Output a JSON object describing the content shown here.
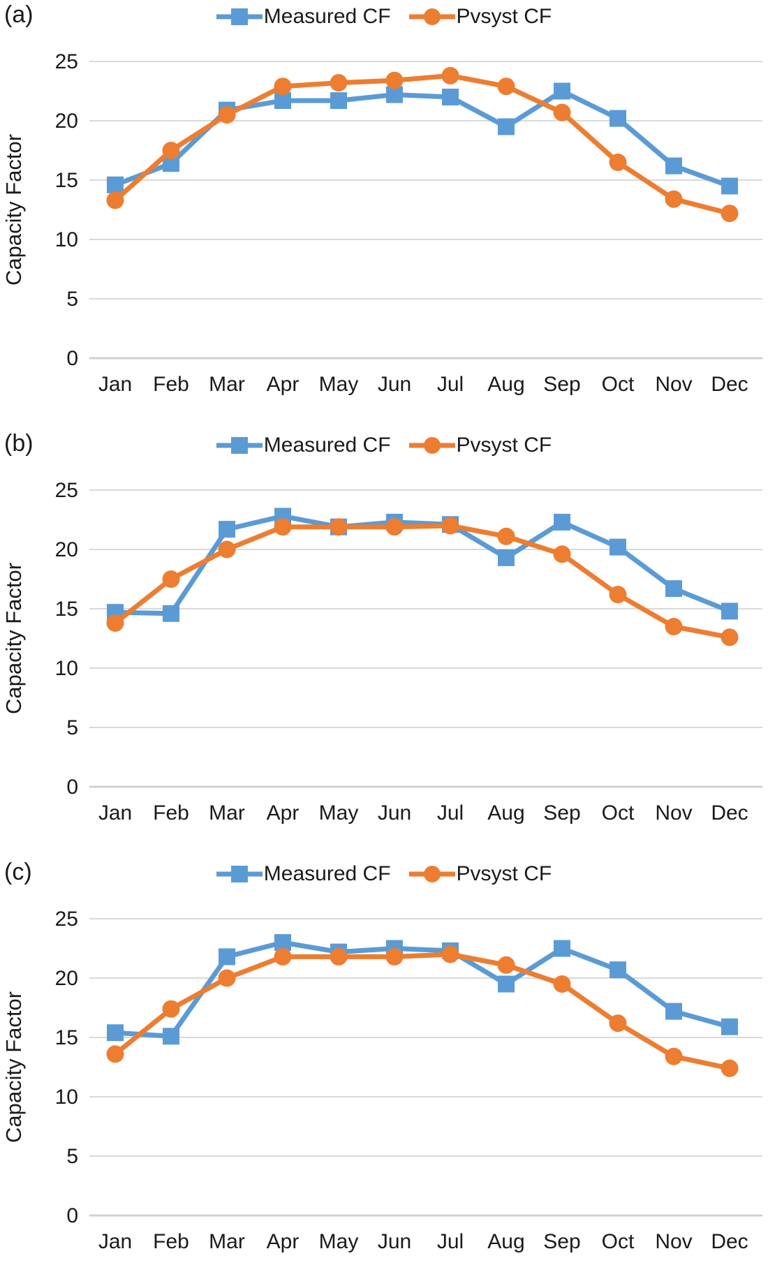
{
  "figure": {
    "accent_blue": "#5B9BD5",
    "accent_orange": "#ED7D31",
    "gridline_color": "#d9d9d9",
    "zero_line_color": "#d0d0d0"
  },
  "chart_data": [
    {
      "type": "line",
      "panel": "(a)",
      "ylabel": "Capacity Factor",
      "ylim": [
        0,
        25
      ],
      "yticks": [
        0,
        5,
        10,
        15,
        20,
        25
      ],
      "grid": "horizontal",
      "legend_position": "top-center",
      "categories": [
        "Jan",
        "Feb",
        "Mar",
        "Apr",
        "May",
        "Jun",
        "Jul",
        "Aug",
        "Sep",
        "Oct",
        "Nov",
        "Dec"
      ],
      "series": [
        {
          "name": "Measured CF",
          "marker": "square",
          "color": "#5B9BD5",
          "values": [
            14.6,
            16.4,
            20.9,
            21.7,
            21.7,
            22.2,
            22.0,
            19.5,
            22.5,
            20.2,
            16.2,
            14.5
          ]
        },
        {
          "name": "Pvsyst CF",
          "marker": "circle",
          "color": "#ED7D31",
          "values": [
            13.3,
            17.5,
            20.5,
            22.9,
            23.2,
            23.4,
            23.8,
            22.9,
            20.7,
            16.5,
            13.4,
            12.2
          ]
        }
      ]
    },
    {
      "type": "line",
      "panel": "(b)",
      "ylabel": "Capacity Factor",
      "ylim": [
        0,
        25
      ],
      "yticks": [
        0,
        5,
        10,
        15,
        20,
        25
      ],
      "grid": "horizontal",
      "legend_position": "top-center",
      "categories": [
        "Jan",
        "Feb",
        "Mar",
        "Apr",
        "May",
        "Jun",
        "Jul",
        "Aug",
        "Sep",
        "Oct",
        "Nov",
        "Dec"
      ],
      "series": [
        {
          "name": "Measured CF",
          "marker": "square",
          "color": "#5B9BD5",
          "values": [
            14.7,
            14.6,
            21.7,
            22.8,
            21.9,
            22.3,
            22.1,
            19.3,
            22.3,
            20.2,
            16.7,
            14.8
          ]
        },
        {
          "name": "Pvsyst CF",
          "marker": "circle",
          "color": "#ED7D31",
          "values": [
            13.8,
            17.5,
            20.0,
            21.9,
            21.9,
            21.9,
            22.0,
            21.1,
            19.6,
            16.2,
            13.5,
            12.6
          ]
        }
      ]
    },
    {
      "type": "line",
      "panel": "(c)",
      "ylabel": "Capacity Factor",
      "ylim": [
        0,
        25
      ],
      "yticks": [
        0,
        5,
        10,
        15,
        20,
        25
      ],
      "grid": "horizontal",
      "legend_position": "top-center",
      "categories": [
        "Jan",
        "Feb",
        "Mar",
        "Apr",
        "May",
        "Jun",
        "Jul",
        "Aug",
        "Sep",
        "Oct",
        "Nov",
        "Dec"
      ],
      "series": [
        {
          "name": "Measured CF",
          "marker": "square",
          "color": "#5B9BD5",
          "values": [
            15.4,
            15.1,
            21.8,
            23.0,
            22.2,
            22.5,
            22.3,
            19.5,
            22.5,
            20.7,
            17.2,
            15.9
          ]
        },
        {
          "name": "Pvsyst CF",
          "marker": "circle",
          "color": "#ED7D31",
          "values": [
            13.6,
            17.4,
            20.0,
            21.8,
            21.8,
            21.8,
            22.0,
            21.1,
            19.5,
            16.2,
            13.4,
            12.4
          ]
        }
      ]
    }
  ]
}
